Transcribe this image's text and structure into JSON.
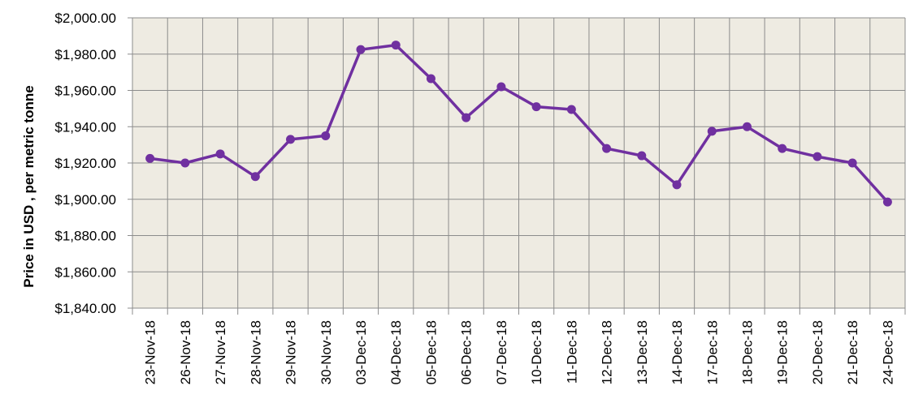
{
  "chart_data": {
    "type": "line",
    "title": "",
    "xlabel": "",
    "ylabel": "Price in USD , per metric tonne",
    "ylim": [
      1840,
      2000
    ],
    "ytick_step": 20,
    "ytick_labels": [
      "$1,840.00",
      "$1,860.00",
      "$1,880.00",
      "$1,900.00",
      "$1,920.00",
      "$1,940.00",
      "$1,960.00",
      "$1,980.00",
      "$2,000.00"
    ],
    "grid": true,
    "legend": "none",
    "categories": [
      "23-Nov-18",
      "26-Nov-18",
      "27-Nov-18",
      "28-Nov-18",
      "29-Nov-18",
      "30-Nov-18",
      "03-Dec-18",
      "04-Dec-18",
      "05-Dec-18",
      "06-Dec-18",
      "07-Dec-18",
      "10-Dec-18",
      "11-Dec-18",
      "12-Dec-18",
      "13-Dec-18",
      "14-Dec-18",
      "17-Dec-18",
      "18-Dec-18",
      "19-Dec-18",
      "20-Dec-18",
      "21-Dec-18",
      "24-Dec-18"
    ],
    "series": [
      {
        "values": [
          1922.5,
          1920,
          1925,
          1912.5,
          1933,
          1935,
          1982.5,
          1985,
          1966.5,
          1945,
          1962,
          1951,
          1949.5,
          1928,
          1924,
          1908,
          1937.5,
          1940,
          1928,
          1923.5,
          1920,
          1898.5
        ]
      }
    ],
    "colors": {
      "line": "#7030a0",
      "plot_background": "#eeebe2",
      "grid": "#8c8c8c"
    }
  }
}
